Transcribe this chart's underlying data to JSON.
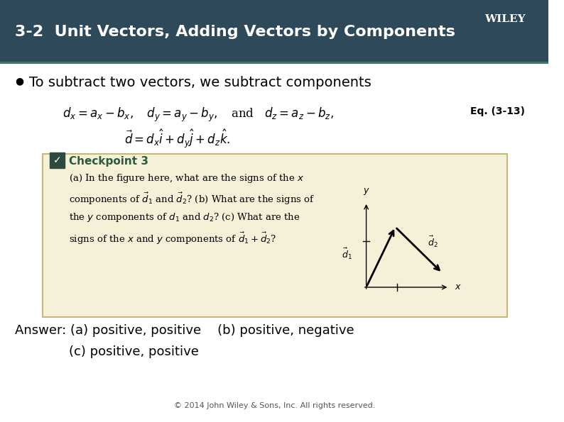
{
  "title": "3-2  Unit Vectors, Adding Vectors by Components",
  "wiley_text": "WILEY",
  "header_bg_top": "#2e4a5e",
  "header_bg_bottom": "#3a5a70",
  "bullet_text": "To subtract two vectors, we subtract components",
  "eq_label": "Eq. (3-13)",
  "checkpoint_title": "Checkpoint 3",
  "checkpoint_body": "(a) In the figure here, what are the signs of the x\ncomponents of $\\vec{d}_1$ and $\\vec{d}_2$? (b) What are the signs of\nthe y components of $d_1$ and $d_2$? (c) What are the\nsigns of the x and y components of $\\vec{d}_1 + \\vec{d}_2$?",
  "answer_line1": "Answer: (a) positive, positive    (b) positive, negative",
  "answer_line2": "(c) positive, positive",
  "copyright": "© 2014 John Wiley & Sons, Inc. All rights reserved.",
  "checkpoint_bg": "#f5f0d8",
  "checkpoint_border": "#c8b878",
  "white_bg": "#ffffff",
  "dark_teal": "#2d5a4e",
  "eq1": "$d_x = a_x - b_x,$  $d_y = a_y - b_y,$   and   $d_z = a_z - b_z,$",
  "eq2": "$\\vec{d} = d_x\\hat{i} + d_y\\hat{j} + d_z\\hat{k}.$"
}
